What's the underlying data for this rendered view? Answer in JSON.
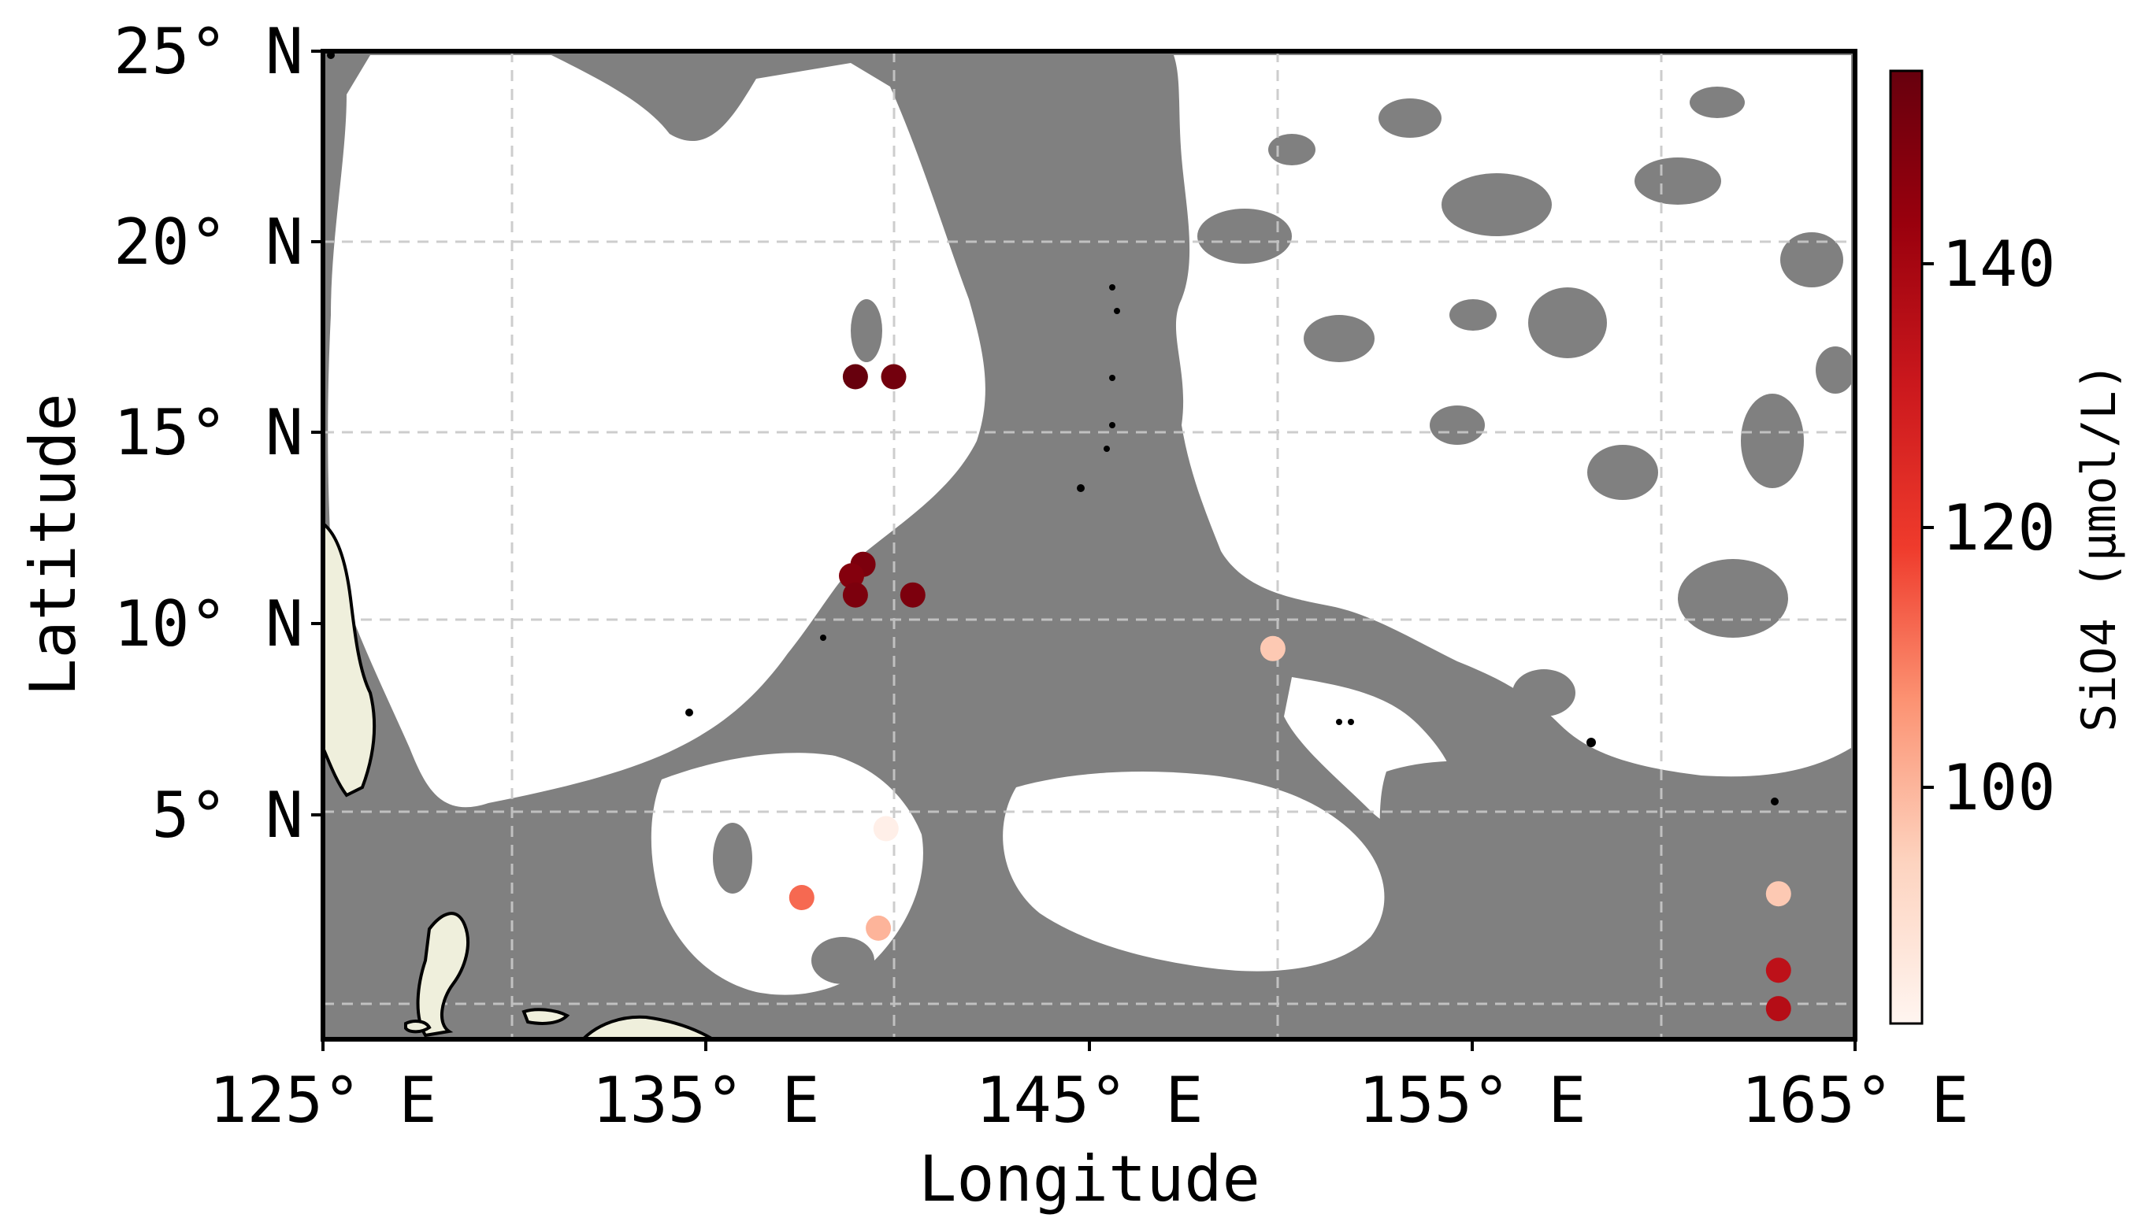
{
  "map": {
    "xlabel": "Longitude",
    "ylabel": "Latitude",
    "x_ticks": [
      "125° E",
      "135° E",
      "145° E",
      "155° E",
      "165° E"
    ],
    "y_ticks": [
      "5° N",
      "10° N",
      "15° N",
      "20° N",
      "25° N"
    ],
    "extent": {
      "lon": [
        125,
        165
      ],
      "lat": [
        -0.8,
        25
      ]
    },
    "colors": {
      "ocean_deep": "#808080",
      "ocean_shallow": "#ffffff",
      "land": "#efefdc",
      "coastline": "#000000",
      "grid": "#c8c8c8"
    }
  },
  "colorbar": {
    "label": "SiO4 (μmol/L)",
    "ticks": [
      "100",
      "120",
      "140"
    ],
    "range": [
      82,
      155
    ],
    "colormap": [
      "#fff5f0",
      "#fdd3bf",
      "#fc9272",
      "#ef3b2c",
      "#cb181d",
      "#99000d",
      "#67000d"
    ]
  },
  "chart_data": {
    "type": "scatter",
    "xlabel": "Longitude",
    "ylabel": "Latitude",
    "xlim": [
      125,
      165
    ],
    "ylim": [
      -0.8,
      25
    ],
    "colorbar_label": "SiO4 (μmol/L)",
    "points": [
      {
        "lon": 138.9,
        "lat": 16.5,
        "value": 155
      },
      {
        "lon": 139.9,
        "lat": 16.5,
        "value": 152
      },
      {
        "lon": 139.1,
        "lat": 11.6,
        "value": 150
      },
      {
        "lon": 138.8,
        "lat": 11.3,
        "value": 148
      },
      {
        "lon": 138.9,
        "lat": 10.8,
        "value": 150
      },
      {
        "lon": 140.4,
        "lat": 10.8,
        "value": 150
      },
      {
        "lon": 149.8,
        "lat": 9.4,
        "value": 96
      },
      {
        "lon": 139.7,
        "lat": 4.7,
        "value": 84
      },
      {
        "lon": 137.5,
        "lat": 2.9,
        "value": 112
      },
      {
        "lon": 139.5,
        "lat": 2.1,
        "value": 100
      },
      {
        "lon": 163.0,
        "lat": 3.0,
        "value": 96
      },
      {
        "lon": 163.0,
        "lat": 1.0,
        "value": 134
      },
      {
        "lon": 163.0,
        "lat": 0.0,
        "value": 136
      }
    ]
  }
}
